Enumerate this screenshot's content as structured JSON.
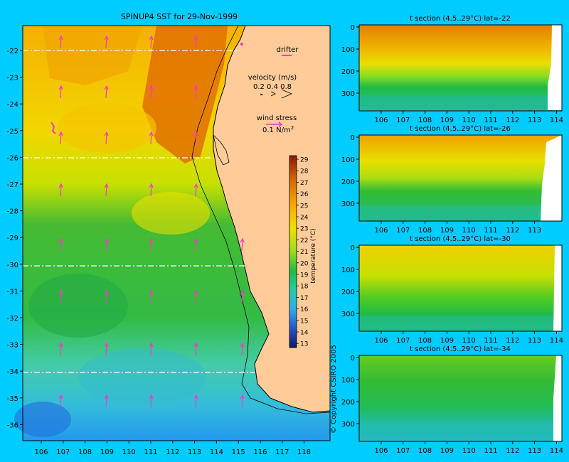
{
  "colors": {
    "background": "#00ccff",
    "land": "#ffcc99",
    "vectors": "#ff33cc",
    "section_lines": "#ffffff"
  },
  "main_map": {
    "title": "SPINUP4 SST for 29-Nov-1999",
    "lon_ticks": [
      "106",
      "107",
      "108",
      "109",
      "110",
      "111",
      "112",
      "113",
      "114",
      "115",
      "116",
      "117",
      "118"
    ],
    "lat_ticks": [
      "-22",
      "-23",
      "-24",
      "-25",
      "-26",
      "-27",
      "-28",
      "-29",
      "-30",
      "-31",
      "-32",
      "-33",
      "-34",
      "-35",
      "-36"
    ],
    "section_latitudes": [
      -22,
      -26,
      -30,
      -34
    ],
    "drifter_label": "drifter",
    "velocity_label": "velocity (m/s)",
    "velocity_scale_values": "0.2 0.4 0.8",
    "wind_stress_label": "wind stress",
    "wind_stress_scale": "0.1 N/m",
    "wind_stress_exponent": "2",
    "colorbar_label": "temperature (°C)",
    "colorbar_ticks": [
      "29",
      "28",
      "27",
      "26",
      "25",
      "24",
      "23",
      "22",
      "21",
      "20",
      "19",
      "18",
      "17",
      "16",
      "15",
      "14",
      "13"
    ],
    "copyright": "© Copyright CSIRO 2005"
  },
  "sections": [
    {
      "title": "t section (4.5..29°C) lat=-22",
      "depth_ticks": [
        "0",
        "100",
        "200",
        "300"
      ],
      "lon_ticks": [
        "106",
        "107",
        "108",
        "109",
        "110",
        "111",
        "112",
        "113",
        "114"
      ]
    },
    {
      "title": "t section (4.5..29°C) lat=-26",
      "depth_ticks": [
        "0",
        "100",
        "200",
        "300"
      ],
      "lon_ticks": [
        "106",
        "107",
        "108",
        "109",
        "110",
        "111",
        "112",
        "113"
      ]
    },
    {
      "title": "t section (4.5..29°C) lat=-30",
      "depth_ticks": [
        "0",
        "100",
        "200",
        "300"
      ],
      "lon_ticks": [
        "106",
        "107",
        "108",
        "109",
        "110",
        "111",
        "112",
        "113",
        "114"
      ]
    },
    {
      "title": "t section (4.5..29°C) lat=-34",
      "depth_ticks": [
        "0",
        "100",
        "200",
        "300"
      ],
      "lon_ticks": [
        "106",
        "107",
        "108",
        "109",
        "110",
        "111",
        "112",
        "113",
        "114"
      ]
    }
  ]
}
